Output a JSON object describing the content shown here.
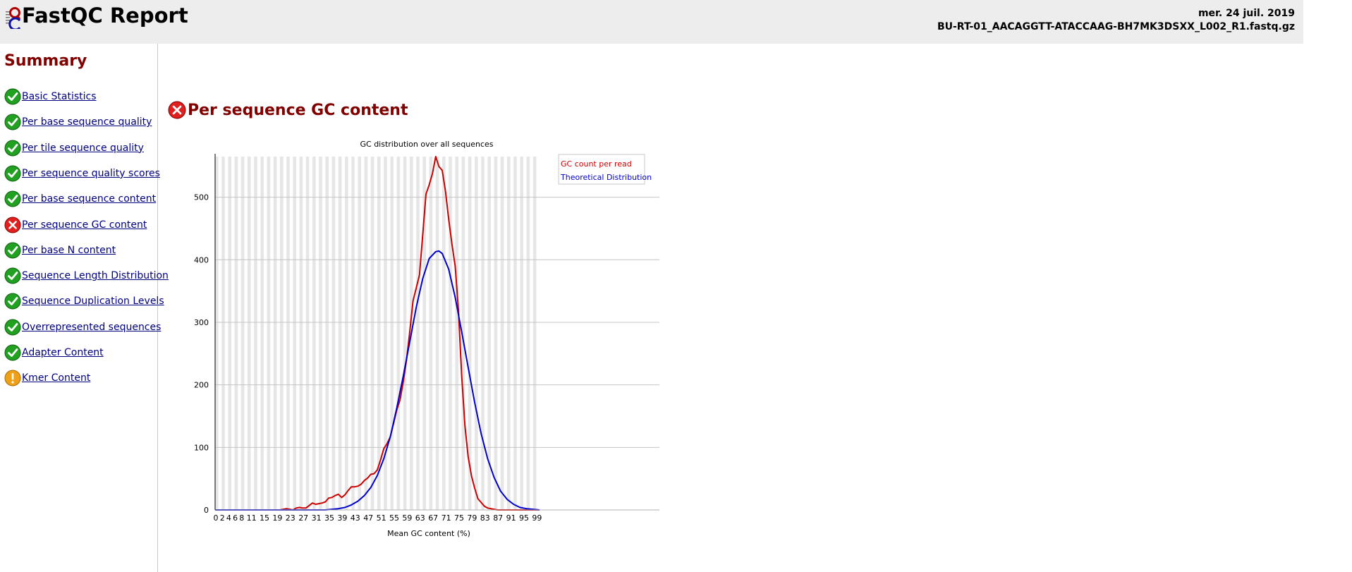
{
  "header": {
    "title": "FastQC Report",
    "date": "mer. 24 juil. 2019",
    "filename": "BU-RT-01_AACAGGTT-ATACCAAG-BH7MK3DSXX_L002_R1.fastq.gz"
  },
  "sidebar": {
    "title": "Summary",
    "items": [
      {
        "label": "Basic Statistics",
        "status": "pass"
      },
      {
        "label": "Per base sequence quality",
        "status": "pass"
      },
      {
        "label": "Per tile sequence quality",
        "status": "pass"
      },
      {
        "label": "Per sequence quality scores",
        "status": "pass"
      },
      {
        "label": "Per base sequence content",
        "status": "pass"
      },
      {
        "label": "Per sequence GC content",
        "status": "fail"
      },
      {
        "label": "Per base N content",
        "status": "pass"
      },
      {
        "label": "Sequence Length Distribution",
        "status": "pass"
      },
      {
        "label": "Sequence Duplication Levels",
        "status": "pass"
      },
      {
        "label": "Overrepresented sequences",
        "status": "pass"
      },
      {
        "label": "Adapter Content",
        "status": "pass"
      },
      {
        "label": "Kmer Content",
        "status": "warn"
      }
    ]
  },
  "main": {
    "title": "Per sequence GC content",
    "status": "fail"
  },
  "colors": {
    "pass": "#22a022",
    "fail": "#e0201e",
    "warn": "#f0a018",
    "heading": "#800000",
    "link": "#000080",
    "observed": "#cc0000",
    "theoretical": "#0000cc"
  },
  "chart_data": {
    "type": "line",
    "title": "GC distribution over all sequences",
    "xlabel": "Mean GC content (%)",
    "ylabel": "",
    "xlim": [
      0,
      100
    ],
    "ylim": [
      0,
      565
    ],
    "yticks": [
      0,
      100,
      200,
      300,
      400,
      500
    ],
    "xtick_labels": [
      "0",
      "2",
      "4",
      "6",
      "8",
      "11",
      "15",
      "19",
      "23",
      "27",
      "31",
      "35",
      "39",
      "43",
      "47",
      "51",
      "55",
      "59",
      "63",
      "67",
      "71",
      "75",
      "79",
      "83",
      "87",
      "91",
      "95",
      "99"
    ],
    "grid": true,
    "legend_position": "top-right",
    "series": [
      {
        "name": "GC count per read",
        "color": "#cc0000",
        "x": [
          0,
          2,
          4,
          6,
          8,
          10,
          12,
          14,
          16,
          18,
          20,
          21,
          22,
          23,
          24,
          25,
          26,
          27,
          28,
          29,
          30,
          31,
          32,
          33,
          34,
          35,
          36,
          37,
          38,
          39,
          40,
          41,
          42,
          43,
          44,
          45,
          46,
          47,
          48,
          49,
          50,
          51,
          52,
          53,
          54,
          55,
          56,
          57,
          58,
          59,
          60,
          61,
          62,
          63,
          64,
          65,
          66,
          67,
          68,
          69,
          70,
          71,
          72,
          73,
          74,
          75,
          76,
          77,
          78,
          79,
          80,
          81,
          82,
          83,
          84,
          85,
          86,
          87,
          88,
          90,
          92,
          94,
          96,
          98,
          100
        ],
        "y": [
          0,
          0,
          0,
          0,
          0,
          0,
          0,
          0,
          0,
          0,
          0,
          1,
          2,
          1,
          0,
          3,
          4,
          3,
          3,
          7,
          11,
          9,
          10,
          11,
          13,
          19,
          20,
          23,
          25,
          20,
          24,
          31,
          37,
          37,
          38,
          41,
          47,
          51,
          57,
          58,
          64,
          80,
          98,
          106,
          117,
          138,
          160,
          176,
          205,
          240,
          285,
          334,
          355,
          376,
          440,
          505,
          520,
          538,
          565,
          549,
          543,
          510,
          465,
          425,
          390,
          320,
          215,
          135,
          85,
          55,
          35,
          18,
          12,
          6,
          3,
          2,
          1,
          0,
          0,
          0,
          0,
          0,
          0,
          0,
          0
        ]
      },
      {
        "name": "Theoretical Distribution",
        "color": "#0000cc",
        "x": [
          0,
          2,
          4,
          6,
          8,
          10,
          12,
          14,
          16,
          18,
          20,
          22,
          24,
          26,
          28,
          30,
          32,
          34,
          36,
          38,
          40,
          42,
          44,
          46,
          48,
          50,
          52,
          54,
          56,
          58,
          60,
          62,
          64,
          66,
          68,
          69,
          70,
          72,
          74,
          76,
          78,
          80,
          82,
          84,
          86,
          88,
          90,
          92,
          94,
          96,
          98,
          100
        ],
        "y": [
          0,
          0,
          0,
          0,
          0,
          0,
          0,
          0,
          0,
          0,
          0,
          0,
          0,
          0,
          0,
          0,
          0,
          0,
          1,
          2,
          4,
          8,
          14,
          23,
          36,
          55,
          82,
          117,
          163,
          214,
          269,
          324,
          370,
          402,
          413,
          414,
          410,
          385,
          340,
          285,
          228,
          172,
          122,
          82,
          52,
          30,
          17,
          9,
          4,
          2,
          1,
          0
        ]
      }
    ]
  }
}
